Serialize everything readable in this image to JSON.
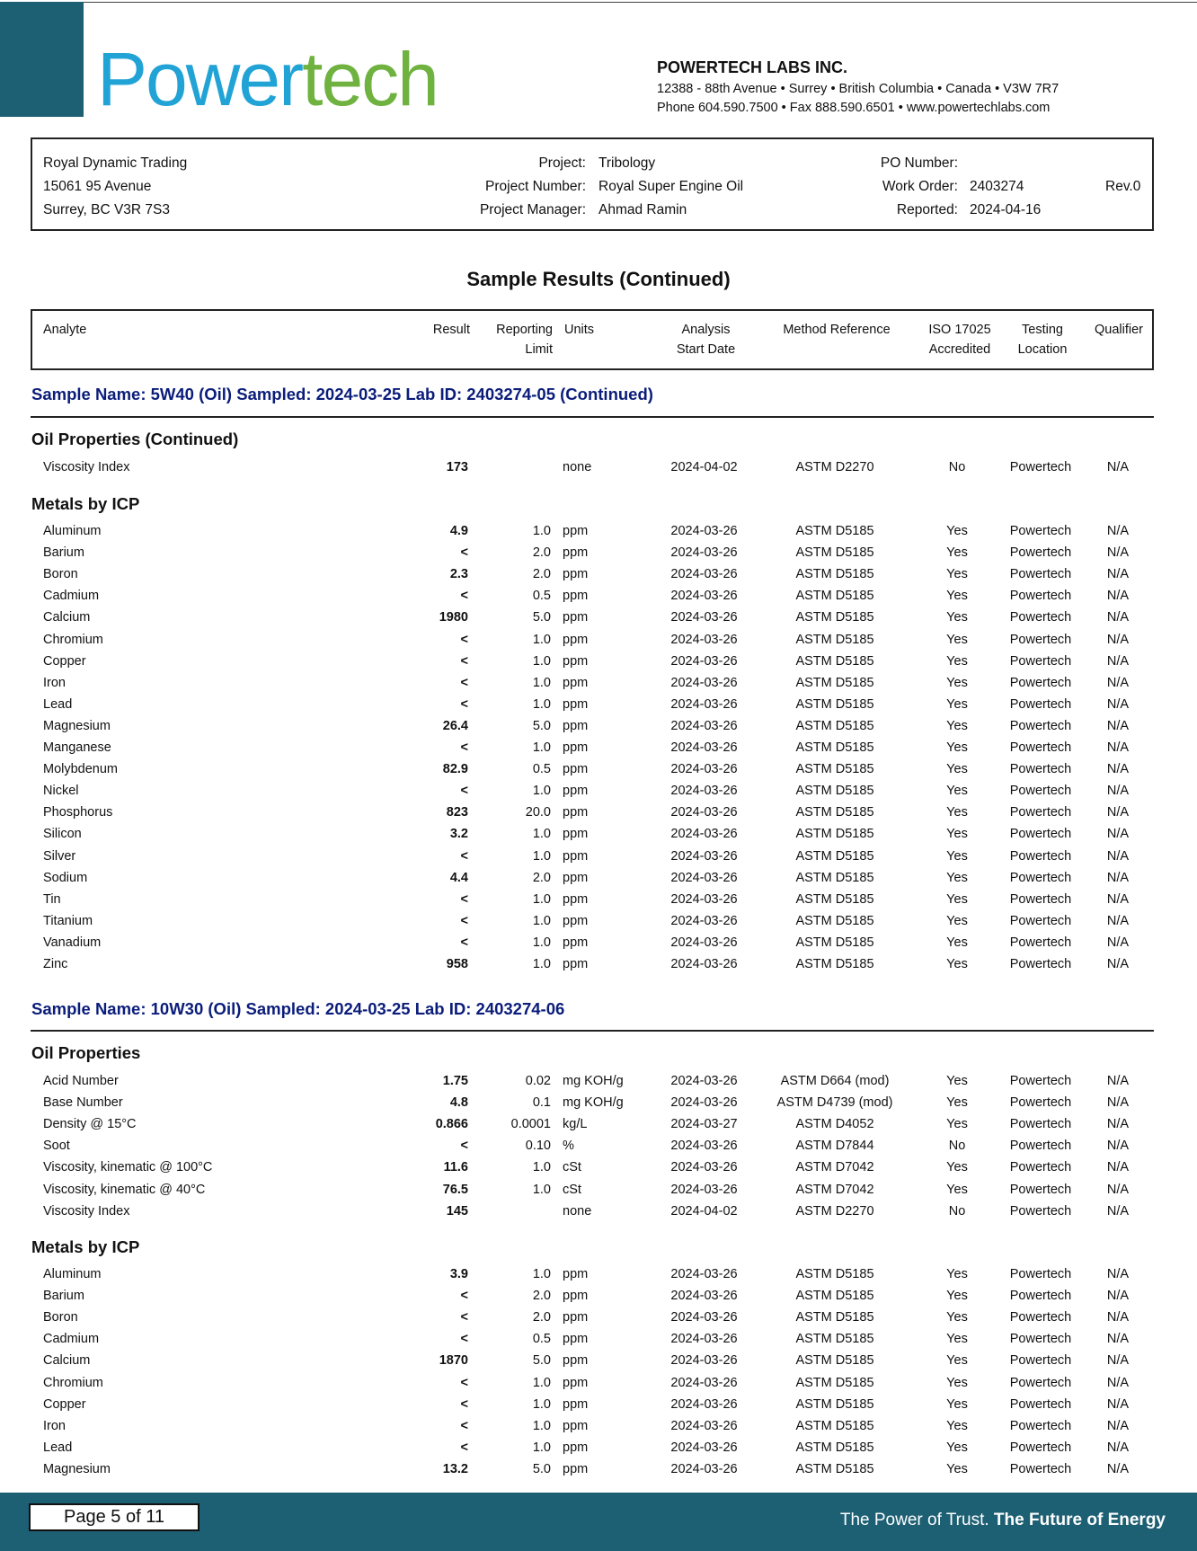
{
  "logo": {
    "part1": "Power",
    "part2": "tech"
  },
  "lab": {
    "name": "POWERTECH LABS INC.",
    "address": "12388 - 88th Avenue • Surrey • British Columbia • Canada • V3W 7R7",
    "contact": "Phone 604.590.7500 • Fax 888.590.6501 • www.powertechlabs.com"
  },
  "client": {
    "name": "Royal Dynamic Trading",
    "street": "15061 95 Avenue",
    "city": "Surrey, BC  V3R 7S3",
    "project_label": "Project:",
    "project": "Tribology",
    "project_number_label": "Project Number:",
    "project_number": "Royal Super Engine Oil",
    "project_manager_label": "Project Manager:",
    "project_manager": "Ahmad Ramin",
    "po_label": "PO Number:",
    "po": "",
    "work_order_label": "Work Order:",
    "work_order": "2403274",
    "rev": "Rev.0",
    "reported_label": "Reported:",
    "reported": "2024-04-16"
  },
  "title": "Sample Results  (Continued)",
  "header": {
    "analyte": "Analyte",
    "result": "Result",
    "reporting1": "Reporting",
    "reporting2": "Limit",
    "units": "Units",
    "analysis1": "Analysis",
    "analysis2": "Start Date",
    "method": "Method Reference",
    "iso1": "ISO 17025",
    "iso2": "Accredited",
    "testing1": "Testing",
    "testing2": "Location",
    "qualifier": "Qualifier"
  },
  "samples": [
    {
      "title": "Sample Name: 5W40 (Oil)  Sampled: 2024-03-25  Lab ID: 2403274-05   (Continued)",
      "sections": [
        {
          "title": "Oil Properties  (Continued)",
          "rows": [
            [
              "Viscosity Index",
              "173",
              "",
              "none",
              "2024-04-02",
              "ASTM D2270",
              "No",
              "Powertech",
              "N/A"
            ]
          ]
        },
        {
          "title": "Metals by ICP",
          "rows": [
            [
              "Aluminum",
              "4.9",
              "1.0",
              "ppm",
              "2024-03-26",
              "ASTM D5185",
              "Yes",
              "Powertech",
              "N/A"
            ],
            [
              "Barium",
              "<",
              "2.0",
              "ppm",
              "2024-03-26",
              "ASTM D5185",
              "Yes",
              "Powertech",
              "N/A"
            ],
            [
              "Boron",
              "2.3",
              "2.0",
              "ppm",
              "2024-03-26",
              "ASTM D5185",
              "Yes",
              "Powertech",
              "N/A"
            ],
            [
              "Cadmium",
              "<",
              "0.5",
              "ppm",
              "2024-03-26",
              "ASTM D5185",
              "Yes",
              "Powertech",
              "N/A"
            ],
            [
              "Calcium",
              "1980",
              "5.0",
              "ppm",
              "2024-03-26",
              "ASTM D5185",
              "Yes",
              "Powertech",
              "N/A"
            ],
            [
              "Chromium",
              "<",
              "1.0",
              "ppm",
              "2024-03-26",
              "ASTM D5185",
              "Yes",
              "Powertech",
              "N/A"
            ],
            [
              "Copper",
              "<",
              "1.0",
              "ppm",
              "2024-03-26",
              "ASTM D5185",
              "Yes",
              "Powertech",
              "N/A"
            ],
            [
              "Iron",
              "<",
              "1.0",
              "ppm",
              "2024-03-26",
              "ASTM D5185",
              "Yes",
              "Powertech",
              "N/A"
            ],
            [
              "Lead",
              "<",
              "1.0",
              "ppm",
              "2024-03-26",
              "ASTM D5185",
              "Yes",
              "Powertech",
              "N/A"
            ],
            [
              "Magnesium",
              "26.4",
              "5.0",
              "ppm",
              "2024-03-26",
              "ASTM D5185",
              "Yes",
              "Powertech",
              "N/A"
            ],
            [
              "Manganese",
              "<",
              "1.0",
              "ppm",
              "2024-03-26",
              "ASTM D5185",
              "Yes",
              "Powertech",
              "N/A"
            ],
            [
              "Molybdenum",
              "82.9",
              "0.5",
              "ppm",
              "2024-03-26",
              "ASTM D5185",
              "Yes",
              "Powertech",
              "N/A"
            ],
            [
              "Nickel",
              "<",
              "1.0",
              "ppm",
              "2024-03-26",
              "ASTM D5185",
              "Yes",
              "Powertech",
              "N/A"
            ],
            [
              "Phosphorus",
              "823",
              "20.0",
              "ppm",
              "2024-03-26",
              "ASTM D5185",
              "Yes",
              "Powertech",
              "N/A"
            ],
            [
              "Silicon",
              "3.2",
              "1.0",
              "ppm",
              "2024-03-26",
              "ASTM D5185",
              "Yes",
              "Powertech",
              "N/A"
            ],
            [
              "Silver",
              "<",
              "1.0",
              "ppm",
              "2024-03-26",
              "ASTM D5185",
              "Yes",
              "Powertech",
              "N/A"
            ],
            [
              "Sodium",
              "4.4",
              "2.0",
              "ppm",
              "2024-03-26",
              "ASTM D5185",
              "Yes",
              "Powertech",
              "N/A"
            ],
            [
              "Tin",
              "<",
              "1.0",
              "ppm",
              "2024-03-26",
              "ASTM D5185",
              "Yes",
              "Powertech",
              "N/A"
            ],
            [
              "Titanium",
              "<",
              "1.0",
              "ppm",
              "2024-03-26",
              "ASTM D5185",
              "Yes",
              "Powertech",
              "N/A"
            ],
            [
              "Vanadium",
              "<",
              "1.0",
              "ppm",
              "2024-03-26",
              "ASTM D5185",
              "Yes",
              "Powertech",
              "N/A"
            ],
            [
              "Zinc",
              "958",
              "1.0",
              "ppm",
              "2024-03-26",
              "ASTM D5185",
              "Yes",
              "Powertech",
              "N/A"
            ]
          ]
        }
      ]
    },
    {
      "title": "Sample Name: 10W30 (Oil)  Sampled: 2024-03-25  Lab ID: 2403274-06",
      "sections": [
        {
          "title": "Oil Properties",
          "rows": [
            [
              "Acid Number",
              "1.75",
              "0.02",
              "mg KOH/g",
              "2024-03-26",
              "ASTM D664 (mod)",
              "Yes",
              "Powertech",
              "N/A"
            ],
            [
              "Base Number",
              "4.8",
              "0.1",
              "mg KOH/g",
              "2024-03-26",
              "ASTM D4739 (mod)",
              "Yes",
              "Powertech",
              "N/A"
            ],
            [
              "Density @ 15°C",
              "0.866",
              "0.0001",
              "kg/L",
              "2024-03-27",
              "ASTM D4052",
              "Yes",
              "Powertech",
              "N/A"
            ],
            [
              "Soot",
              "<",
              "0.10",
              "%",
              "2024-03-26",
              "ASTM D7844",
              "No",
              "Powertech",
              "N/A"
            ],
            [
              "Viscosity, kinematic @ 100°C",
              "11.6",
              "1.0",
              "cSt",
              "2024-03-26",
              "ASTM D7042",
              "Yes",
              "Powertech",
              "N/A"
            ],
            [
              "Viscosity, kinematic @ 40°C",
              "76.5",
              "1.0",
              "cSt",
              "2024-03-26",
              "ASTM D7042",
              "Yes",
              "Powertech",
              "N/A"
            ],
            [
              "Viscosity Index",
              "145",
              "",
              "none",
              "2024-04-02",
              "ASTM D2270",
              "No",
              "Powertech",
              "N/A"
            ]
          ]
        },
        {
          "title": "Metals by ICP",
          "rows": [
            [
              "Aluminum",
              "3.9",
              "1.0",
              "ppm",
              "2024-03-26",
              "ASTM D5185",
              "Yes",
              "Powertech",
              "N/A"
            ],
            [
              "Barium",
              "<",
              "2.0",
              "ppm",
              "2024-03-26",
              "ASTM D5185",
              "Yes",
              "Powertech",
              "N/A"
            ],
            [
              "Boron",
              "<",
              "2.0",
              "ppm",
              "2024-03-26",
              "ASTM D5185",
              "Yes",
              "Powertech",
              "N/A"
            ],
            [
              "Cadmium",
              "<",
              "0.5",
              "ppm",
              "2024-03-26",
              "ASTM D5185",
              "Yes",
              "Powertech",
              "N/A"
            ],
            [
              "Calcium",
              "1870",
              "5.0",
              "ppm",
              "2024-03-26",
              "ASTM D5185",
              "Yes",
              "Powertech",
              "N/A"
            ],
            [
              "Chromium",
              "<",
              "1.0",
              "ppm",
              "2024-03-26",
              "ASTM D5185",
              "Yes",
              "Powertech",
              "N/A"
            ],
            [
              "Copper",
              "<",
              "1.0",
              "ppm",
              "2024-03-26",
              "ASTM D5185",
              "Yes",
              "Powertech",
              "N/A"
            ],
            [
              "Iron",
              "<",
              "1.0",
              "ppm",
              "2024-03-26",
              "ASTM D5185",
              "Yes",
              "Powertech",
              "N/A"
            ],
            [
              "Lead",
              "<",
              "1.0",
              "ppm",
              "2024-03-26",
              "ASTM D5185",
              "Yes",
              "Powertech",
              "N/A"
            ],
            [
              "Magnesium",
              "13.2",
              "5.0",
              "ppm",
              "2024-03-26",
              "ASTM D5185",
              "Yes",
              "Powertech",
              "N/A"
            ]
          ]
        }
      ]
    }
  ],
  "footer": {
    "page": "Page 5 of 11",
    "tagline_regular": "The Power of Trust.",
    "tagline_bold": "The Future of Energy"
  },
  "colors": {
    "brand_teal": "#1d5f73",
    "logo_blue": "#21a3d6",
    "logo_green": "#6fb23f",
    "sample_title_navy": "#0b1d7a"
  }
}
